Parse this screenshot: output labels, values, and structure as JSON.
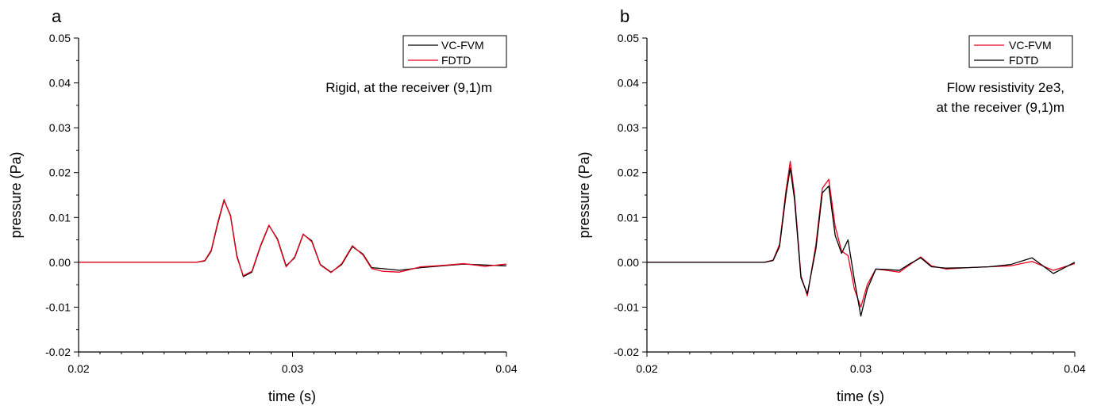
{
  "chart_data": [
    {
      "panel_label": "a",
      "type": "line",
      "xlabel": "time (s)",
      "ylabel": "pressure (Pa)",
      "xlim": [
        0.02,
        0.04
      ],
      "ylim": [
        -0.02,
        0.05
      ],
      "xticks": [
        0.02,
        0.03,
        0.04
      ],
      "xtick_labels": [
        "0.02",
        "0.03",
        "0.04"
      ],
      "yticks": [
        -0.02,
        -0.01,
        0.0,
        0.01,
        0.02,
        0.03,
        0.04,
        0.05
      ],
      "ytick_labels": [
        "-0.02",
        "-0.01",
        "0.00",
        "0.01",
        "0.02",
        "0.03",
        "0.04",
        "0.05"
      ],
      "annotation": [
        "Rigid, at the receiver (9,1)m"
      ],
      "legend_position": "top-right",
      "series": [
        {
          "name": "VC-FVM",
          "color": "#000000",
          "x": [
            0.02,
            0.0255,
            0.0259,
            0.0262,
            0.0265,
            0.0268,
            0.0271,
            0.0274,
            0.0277,
            0.0281,
            0.0285,
            0.0289,
            0.0293,
            0.0297,
            0.0301,
            0.0305,
            0.0309,
            0.0313,
            0.0318,
            0.0323,
            0.0328,
            0.0333,
            0.0337,
            0.0342,
            0.035,
            0.036,
            0.037,
            0.038,
            0.039,
            0.04
          ],
          "y": [
            0,
            0,
            0.0003,
            0.0025,
            0.0085,
            0.0138,
            0.0105,
            0.0015,
            -0.0032,
            -0.0022,
            0.0035,
            0.0082,
            0.0052,
            -0.0008,
            0.001,
            0.0062,
            0.0048,
            -0.0005,
            -0.0022,
            -0.0005,
            0.0035,
            0.0018,
            -0.0012,
            -0.0014,
            -0.0018,
            -0.0012,
            -0.0008,
            -0.0004,
            -0.0006,
            -0.0008
          ]
        },
        {
          "name": "FDTD",
          "color": "#e8001c",
          "x": [
            0.02,
            0.0255,
            0.0259,
            0.0262,
            0.0265,
            0.0268,
            0.0271,
            0.0274,
            0.0277,
            0.0281,
            0.0285,
            0.0289,
            0.0293,
            0.0297,
            0.0301,
            0.0305,
            0.0309,
            0.0313,
            0.0318,
            0.0323,
            0.0328,
            0.0333,
            0.0337,
            0.0342,
            0.035,
            0.036,
            0.037,
            0.038,
            0.039,
            0.04
          ],
          "y": [
            0,
            0,
            0.0004,
            0.0027,
            0.0088,
            0.014,
            0.0103,
            0.0012,
            -0.003,
            -0.002,
            0.0037,
            0.0083,
            0.005,
            -0.001,
            0.0012,
            0.0063,
            0.0046,
            -0.0006,
            -0.0023,
            -0.0003,
            0.0037,
            0.0016,
            -0.0014,
            -0.002,
            -0.0022,
            -0.001,
            -0.0007,
            -0.0003,
            -0.0009,
            -0.0004
          ]
        }
      ]
    },
    {
      "panel_label": "b",
      "type": "line",
      "xlabel": "time (s)",
      "ylabel": "pressure (Pa)",
      "xlim": [
        0.02,
        0.04
      ],
      "ylim": [
        -0.02,
        0.05
      ],
      "xticks": [
        0.02,
        0.03,
        0.04
      ],
      "xtick_labels": [
        "0.02",
        "0.03",
        "0.04"
      ],
      "yticks": [
        -0.02,
        -0.01,
        0.0,
        0.01,
        0.02,
        0.03,
        0.04,
        0.05
      ],
      "ytick_labels": [
        "-0.02",
        "-0.01",
        "0.00",
        "0.01",
        "0.02",
        "0.03",
        "0.04",
        "0.05"
      ],
      "annotation": [
        "Flow resistivity 2e3,",
        "at the receiver (9,1)m"
      ],
      "legend_position": "top-right",
      "series": [
        {
          "name": "VC-FVM",
          "color": "#e8001c",
          "x": [
            0.02,
            0.0255,
            0.0259,
            0.0262,
            0.0265,
            0.0267,
            0.0269,
            0.0272,
            0.0275,
            0.0279,
            0.0282,
            0.0285,
            0.0288,
            0.0291,
            0.0294,
            0.0297,
            0.03,
            0.0303,
            0.0307,
            0.0312,
            0.0318,
            0.0323,
            0.0328,
            0.0333,
            0.034,
            0.035,
            0.036,
            0.037,
            0.038,
            0.039,
            0.04
          ],
          "y": [
            0,
            0,
            0.0005,
            0.004,
            0.016,
            0.0225,
            0.015,
            -0.003,
            -0.0075,
            0.004,
            0.0165,
            0.0185,
            0.008,
            0.0025,
            0.0015,
            -0.006,
            -0.01,
            -0.005,
            -0.0015,
            -0.0018,
            -0.0022,
            -0.0005,
            0.0012,
            -0.0008,
            -0.0015,
            -0.0012,
            -0.001,
            -0.0008,
            0.0002,
            -0.0018,
            -0.0003
          ]
        },
        {
          "name": "FDTD",
          "color": "#000000",
          "x": [
            0.02,
            0.0255,
            0.0259,
            0.0262,
            0.0265,
            0.0267,
            0.0269,
            0.0272,
            0.0275,
            0.0279,
            0.0282,
            0.0285,
            0.0288,
            0.0291,
            0.0294,
            0.0297,
            0.03,
            0.0303,
            0.0307,
            0.0312,
            0.0318,
            0.0323,
            0.0328,
            0.0333,
            0.034,
            0.035,
            0.036,
            0.037,
            0.038,
            0.039,
            0.04
          ],
          "y": [
            0,
            0,
            0.0004,
            0.0035,
            0.015,
            0.021,
            0.014,
            -0.0035,
            -0.007,
            0.003,
            0.0155,
            0.017,
            0.006,
            0.002,
            0.005,
            -0.004,
            -0.012,
            -0.006,
            -0.0015,
            -0.0016,
            -0.0018,
            -0.0003,
            0.001,
            -0.001,
            -0.0013,
            -0.0012,
            -0.001,
            -0.0005,
            0.001,
            -0.0025,
            0.0
          ]
        }
      ]
    }
  ]
}
